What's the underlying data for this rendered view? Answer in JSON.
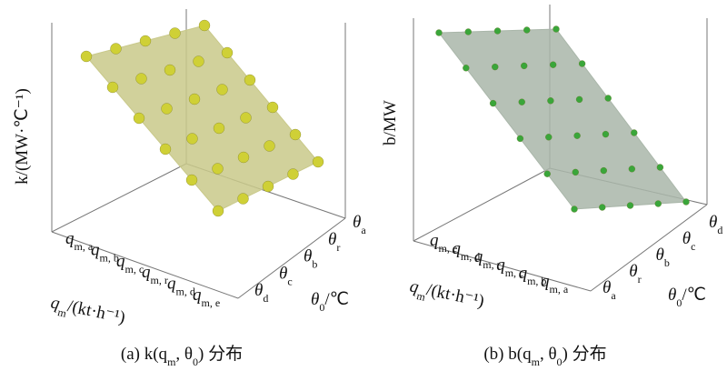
{
  "panels": [
    {
      "z_label": "k/(MW·℃⁻¹)",
      "q_labels": [
        {
          "base": "q",
          "sub": "m, a"
        },
        {
          "base": "q",
          "sub": "m, b"
        },
        {
          "base": "q",
          "sub": "m, c"
        },
        {
          "base": "q",
          "sub": "m, r"
        },
        {
          "base": "q",
          "sub": "m, d"
        },
        {
          "base": "q",
          "sub": "m, e"
        }
      ],
      "q_title": {
        "base": "q",
        "sub": "m",
        "rest": "/(kt·h⁻¹)"
      },
      "theta_labels": [
        {
          "base": "θ",
          "sub": "a"
        },
        {
          "base": "θ",
          "sub": "r"
        },
        {
          "base": "θ",
          "sub": "b"
        },
        {
          "base": "θ",
          "sub": "c"
        },
        {
          "base": "θ",
          "sub": "d"
        }
      ],
      "theta_title": {
        "base": "θ",
        "sub": "0",
        "rest": "/℃"
      },
      "caption": {
        "pre": "(a) k(q",
        "sub": "m",
        "mid": ", θ",
        "sub2": "0",
        "post": ") 分布"
      }
    },
    {
      "z_label": "b/MW",
      "q_labels": [
        {
          "base": "q",
          "sub": "m, e"
        },
        {
          "base": "q",
          "sub": "m, d"
        },
        {
          "base": "q",
          "sub": "m, r"
        },
        {
          "base": "q",
          "sub": "m, c"
        },
        {
          "base": "q",
          "sub": "m, b"
        },
        {
          "base": "q",
          "sub": "m, a"
        }
      ],
      "q_title": {
        "base": "q",
        "sub": "m",
        "rest": "/(kt·h⁻¹)"
      },
      "theta_labels": [
        {
          "base": "θ",
          "sub": "d"
        },
        {
          "base": "θ",
          "sub": "c"
        },
        {
          "base": "θ",
          "sub": "b"
        },
        {
          "base": "θ",
          "sub": "r"
        },
        {
          "base": "θ",
          "sub": "a"
        }
      ],
      "theta_title": {
        "base": "θ",
        "sub": "0",
        "rest": "/℃"
      },
      "caption": {
        "pre": "(b) b(q",
        "sub": "m",
        "mid": ", θ",
        "sub2": "0",
        "post": ") 分布"
      }
    }
  ]
}
